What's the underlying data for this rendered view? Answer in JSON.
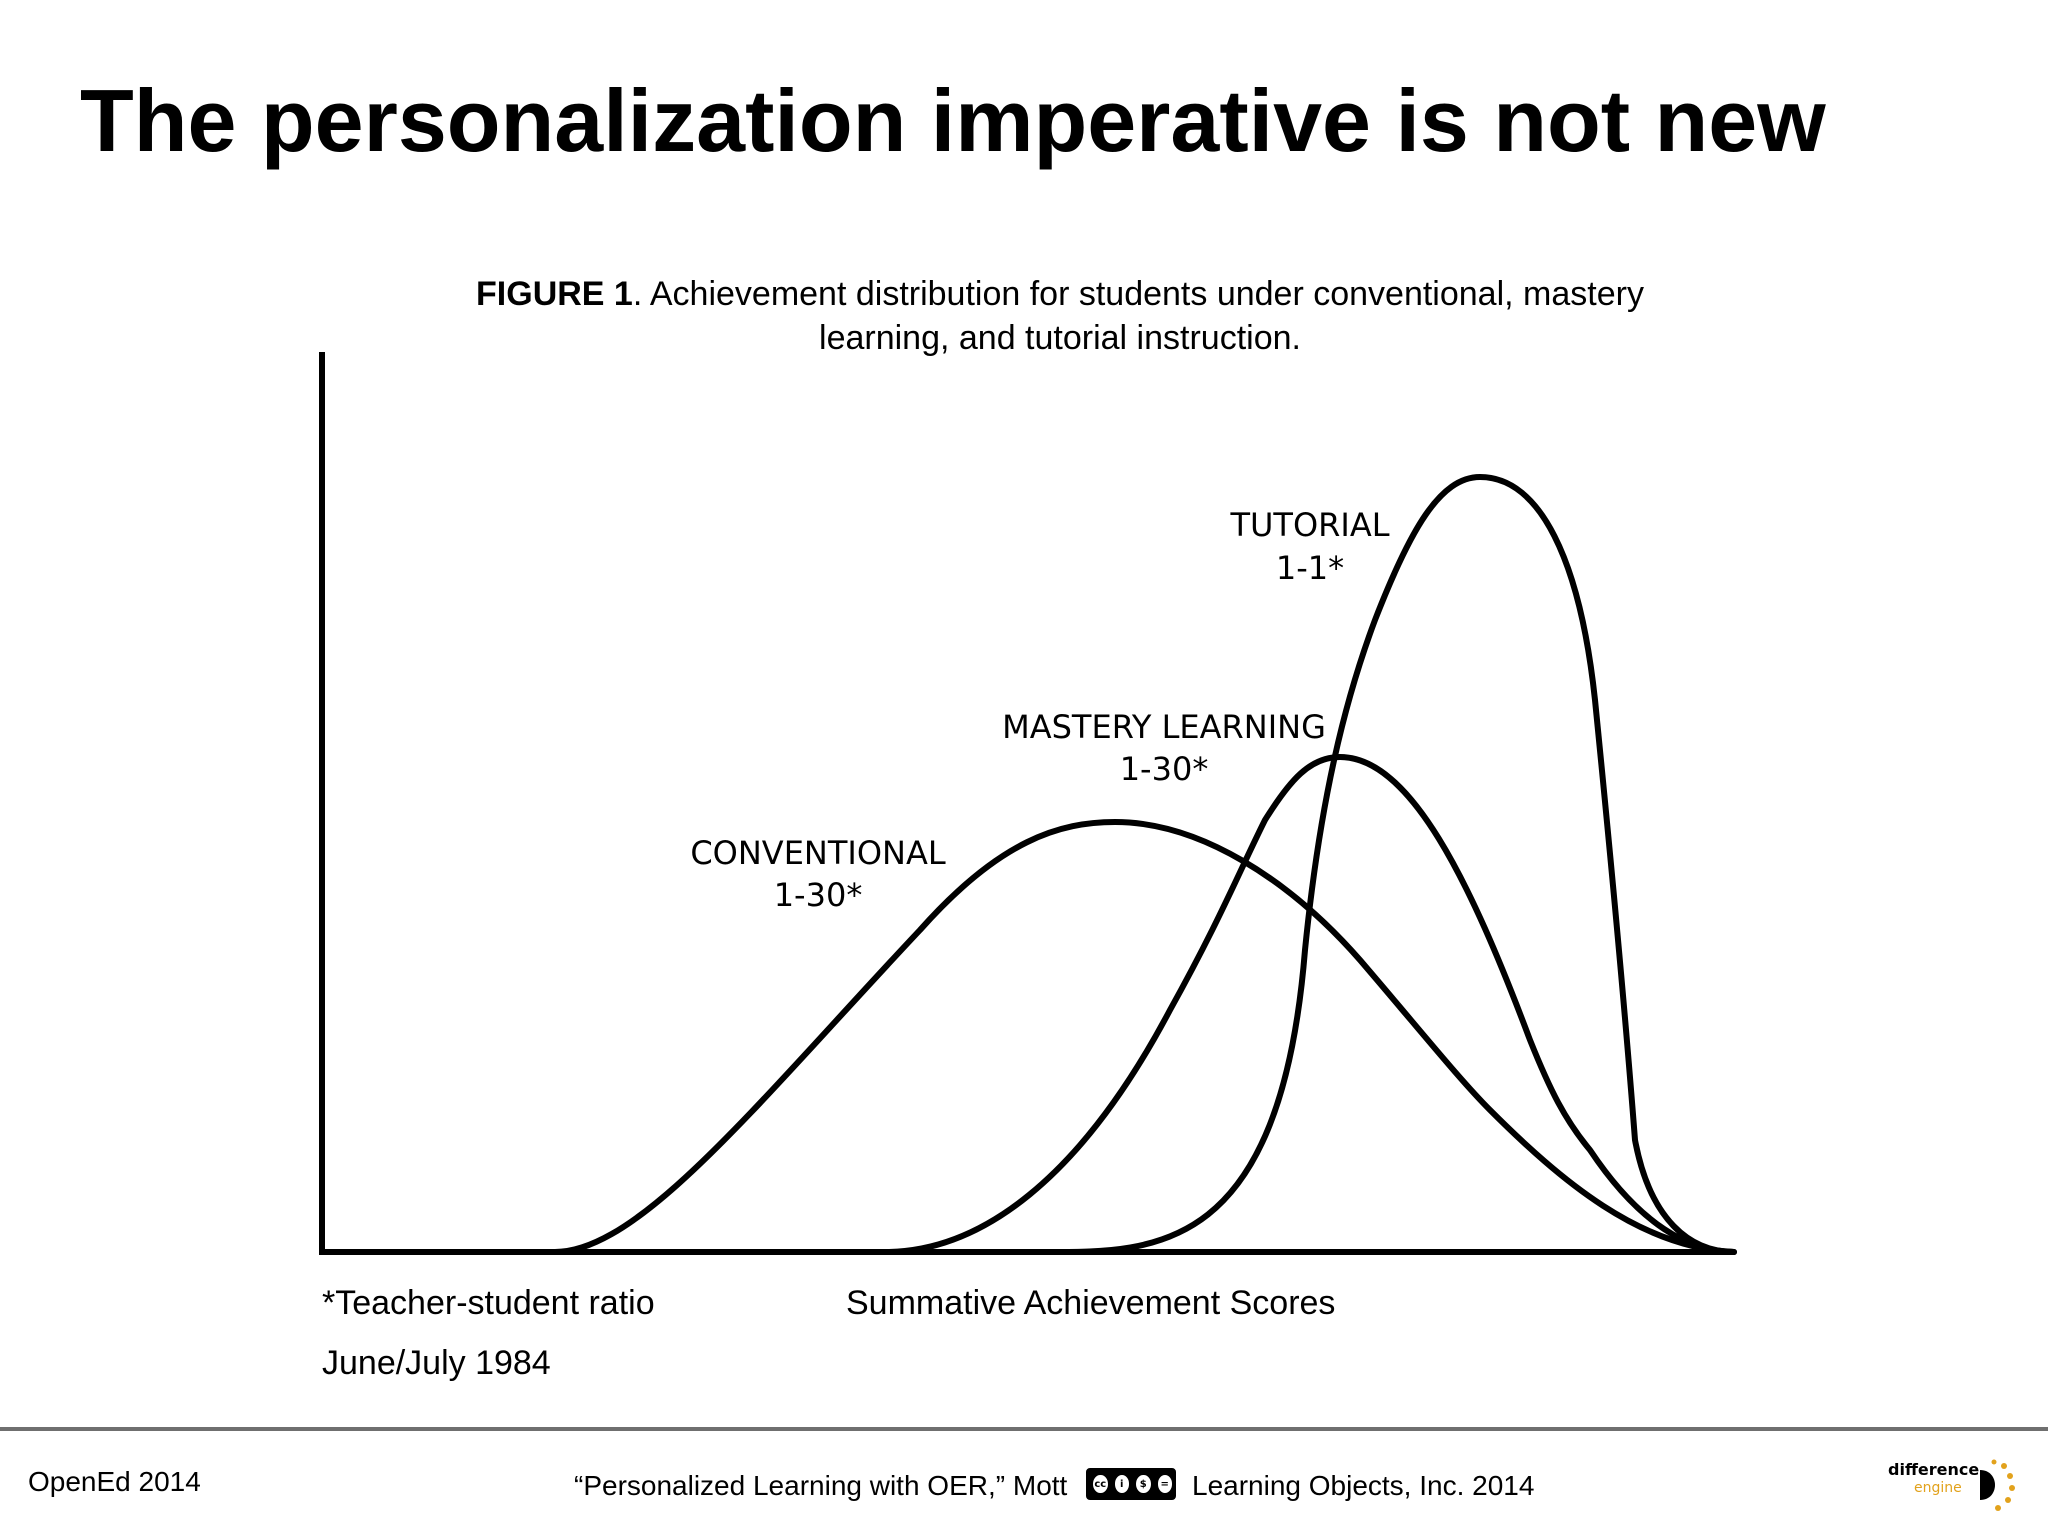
{
  "slide": {
    "title": "The personalization imperative is not new"
  },
  "figure": {
    "caption_bold": "FIGURE 1",
    "caption_line1_rest": ". Achievement distribution for students under conventional, mastery",
    "caption_line2": "learning, and tutorial instruction.",
    "x_axis_label": "Summative Achievement Scores",
    "ratio_note": "*Teacher-student ratio",
    "date_note": "June/July 1984",
    "curves": [
      {
        "name": "CONVENTIONAL",
        "ratio": "1-30*"
      },
      {
        "name": "MASTERY LEARNING",
        "ratio": "1-30*"
      },
      {
        "name": "TUTORIAL",
        "ratio": "1-1*"
      }
    ]
  },
  "footer": {
    "left": "OpenEd 2014",
    "center_title": "“Personalized Learning with OER,” Mott",
    "license_icon": "cc-by-nc-nd-badge",
    "center_org": "Learning Objects, Inc. 2014",
    "logo_word1": "difference",
    "logo_word2": "engine",
    "logo_icon": "difference-engine-logo"
  }
}
